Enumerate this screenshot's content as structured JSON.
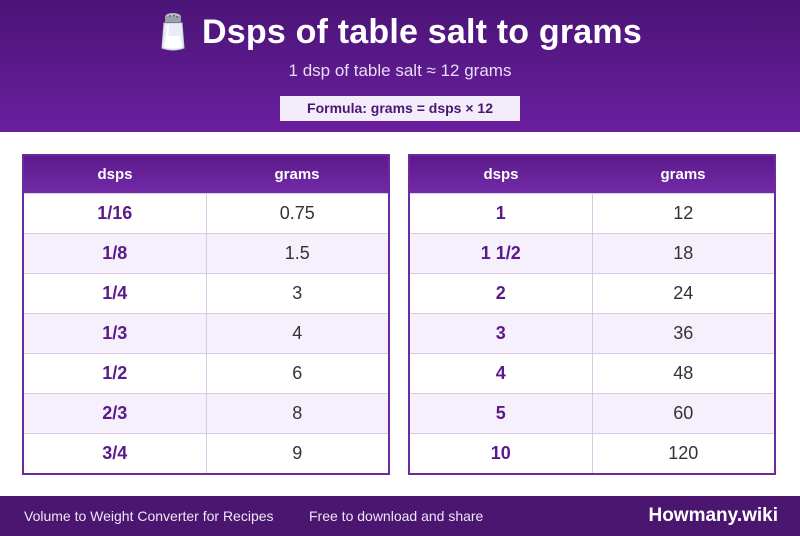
{
  "header": {
    "title": "Dsps of table salt to grams",
    "subtitle": "1 dsp of table salt ≈ 12 grams",
    "formula": "Formula: grams = dsps × 12",
    "icon": "salt-shaker-icon"
  },
  "columns": {
    "unit": "dsps",
    "grams": "grams"
  },
  "left_table": [
    {
      "dsps": "1/16",
      "grams": "0.75"
    },
    {
      "dsps": "1/8",
      "grams": "1.5"
    },
    {
      "dsps": "1/4",
      "grams": "3"
    },
    {
      "dsps": "1/3",
      "grams": "4"
    },
    {
      "dsps": "1/2",
      "grams": "6"
    },
    {
      "dsps": "2/3",
      "grams": "8"
    },
    {
      "dsps": "3/4",
      "grams": "9"
    }
  ],
  "right_table": [
    {
      "dsps": "1",
      "grams": "12"
    },
    {
      "dsps": "1 1/2",
      "grams": "18"
    },
    {
      "dsps": "2",
      "grams": "24"
    },
    {
      "dsps": "3",
      "grams": "36"
    },
    {
      "dsps": "4",
      "grams": "48"
    },
    {
      "dsps": "5",
      "grams": "60"
    },
    {
      "dsps": "10",
      "grams": "120"
    }
  ],
  "footer": {
    "left": "Volume to Weight Converter for Recipes",
    "middle": "Free to download and share",
    "brand": "Howmany.wiki"
  },
  "colors": {
    "header": "#5c1a8a",
    "footer": "#4a1670",
    "accent": "#6d2a9e"
  }
}
